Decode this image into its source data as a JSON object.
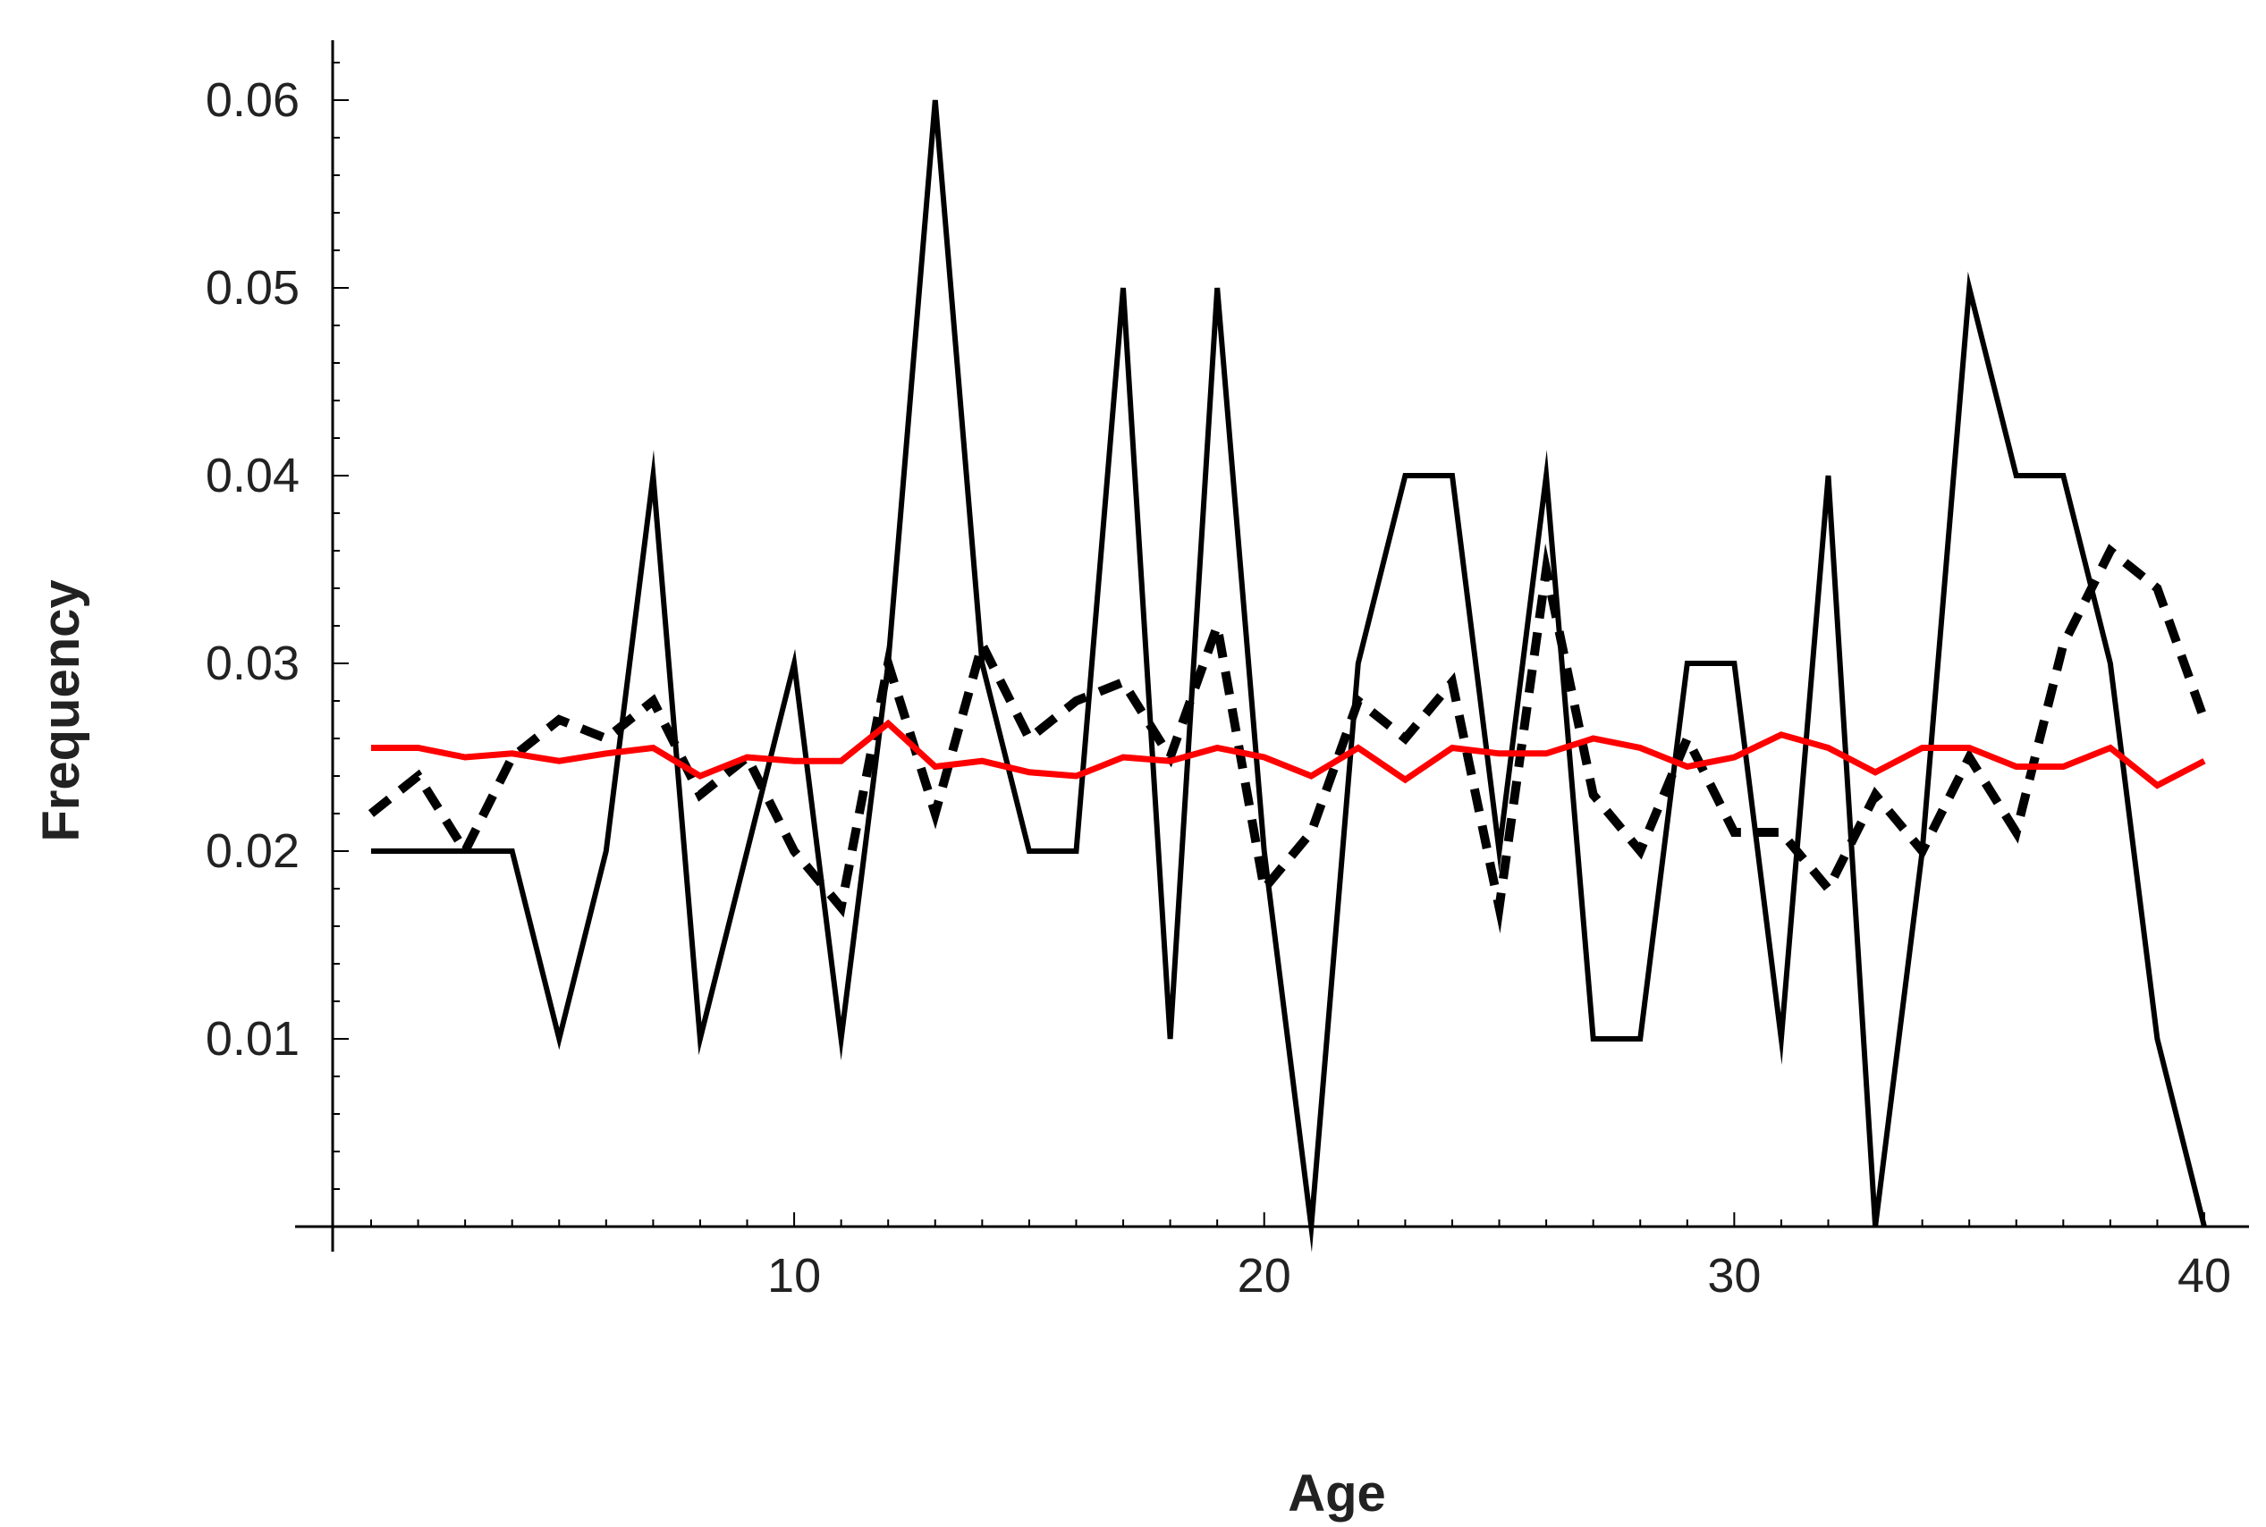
{
  "chart_data": {
    "type": "line",
    "title": "",
    "xlabel": "Age",
    "ylabel": "Frequency",
    "xlim": [
      1,
      40
    ],
    "ylim": [
      0,
      0.06
    ],
    "x_ticks": [
      10,
      20,
      30,
      40
    ],
    "x_tick_labels": [
      "10",
      "20",
      "30",
      "40"
    ],
    "y_ticks": [
      0.01,
      0.02,
      0.03,
      0.04,
      0.05,
      0.06
    ],
    "y_tick_labels": [
      "0.01",
      "0.02",
      "0.03",
      "0.04",
      "0.05",
      "0.06"
    ],
    "grid": false,
    "legend": "none",
    "x": [
      1,
      2,
      3,
      4,
      5,
      6,
      7,
      8,
      9,
      10,
      11,
      12,
      13,
      14,
      15,
      16,
      17,
      18,
      19,
      20,
      21,
      22,
      23,
      24,
      25,
      26,
      27,
      28,
      29,
      30,
      31,
      32,
      33,
      34,
      35,
      36,
      37,
      38,
      39,
      40
    ],
    "series": [
      {
        "style": "solid",
        "color": "#000000",
        "values": [
          0.02,
          0.02,
          0.02,
          0.02,
          0.01,
          0.02,
          0.04,
          0.01,
          0.02,
          0.03,
          0.01,
          0.03,
          0.06,
          0.03,
          0.02,
          0.02,
          0.05,
          0.01,
          0.05,
          0.02,
          0.0,
          0.03,
          0.04,
          0.04,
          0.02,
          0.04,
          0.01,
          0.01,
          0.03,
          0.03,
          0.01,
          0.04,
          0.0,
          0.02,
          0.05,
          0.04,
          0.04,
          0.03,
          0.01,
          0.0
        ]
      },
      {
        "style": "dashed",
        "color": "#000000",
        "values": [
          0.022,
          0.024,
          0.02,
          0.025,
          0.027,
          0.026,
          0.028,
          0.023,
          0.025,
          0.02,
          0.017,
          0.03,
          0.022,
          0.031,
          0.026,
          0.028,
          0.029,
          0.025,
          0.032,
          0.018,
          0.021,
          0.028,
          0.026,
          0.029,
          0.017,
          0.035,
          0.023,
          0.02,
          0.026,
          0.021,
          0.021,
          0.018,
          0.023,
          0.02,
          0.025,
          0.021,
          0.031,
          0.036,
          0.034,
          0.027
        ]
      },
      {
        "style": "solid",
        "color": "#ff0000",
        "values": [
          0.0255,
          0.0255,
          0.025,
          0.0252,
          0.0248,
          0.0252,
          0.0255,
          0.024,
          0.025,
          0.0248,
          0.0248,
          0.0268,
          0.0245,
          0.0248,
          0.0242,
          0.024,
          0.025,
          0.0248,
          0.0255,
          0.025,
          0.024,
          0.0255,
          0.0238,
          0.0255,
          0.0252,
          0.0252,
          0.026,
          0.0255,
          0.0245,
          0.025,
          0.0262,
          0.0255,
          0.0242,
          0.0255,
          0.0255,
          0.0245,
          0.0245,
          0.0255,
          0.0235,
          0.0248
        ]
      }
    ]
  }
}
